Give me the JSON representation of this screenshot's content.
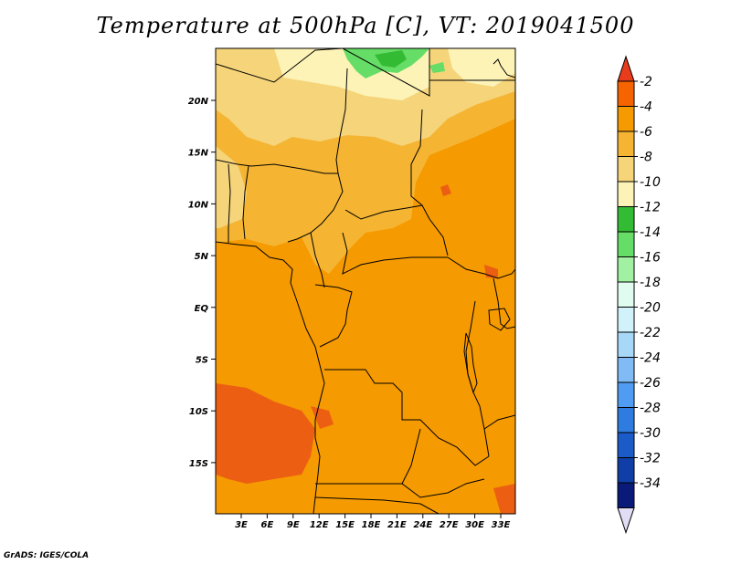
{
  "title": "Temperature at 500hPa [C], VT: 2019041500",
  "credit": "GrADS: IGES/COLA",
  "map": {
    "lat_labels": [
      "20N",
      "15N",
      "10N",
      "5N",
      "EQ",
      "5S",
      "10S",
      "15S"
    ],
    "lon_labels": [
      "3E",
      "6E",
      "9E",
      "12E",
      "15E",
      "18E",
      "21E",
      "24E",
      "27E",
      "30E",
      "33E"
    ],
    "region": "Central Africa"
  },
  "colorbar": {
    "labels": [
      "-2",
      "-4",
      "-6",
      "-8",
      "-10",
      "-12",
      "-14",
      "-16",
      "-18",
      "-20",
      "-22",
      "-24",
      "-26",
      "-28",
      "-30",
      "-32",
      "-34"
    ],
    "colors": [
      "#e83c1c",
      "#f56400",
      "#f59a00",
      "#f5b533",
      "#f5d47a",
      "#fdf3b7",
      "#33bb33",
      "#66dd66",
      "#a2f0a2",
      "#e0fbef",
      "#d2f2fb",
      "#a8d8f8",
      "#80bbf5",
      "#4f9cf2",
      "#2f7ce0",
      "#1b5bc8",
      "#0f3ea6",
      "#0a1a78",
      "#e0ddf5"
    ]
  },
  "colors": {
    "warmest": "#e85a1c",
    "warm": "#f59a00",
    "mid": "#f5b533",
    "cool": "#f5d47a",
    "green": "#66dd66",
    "border": "#000000"
  }
}
